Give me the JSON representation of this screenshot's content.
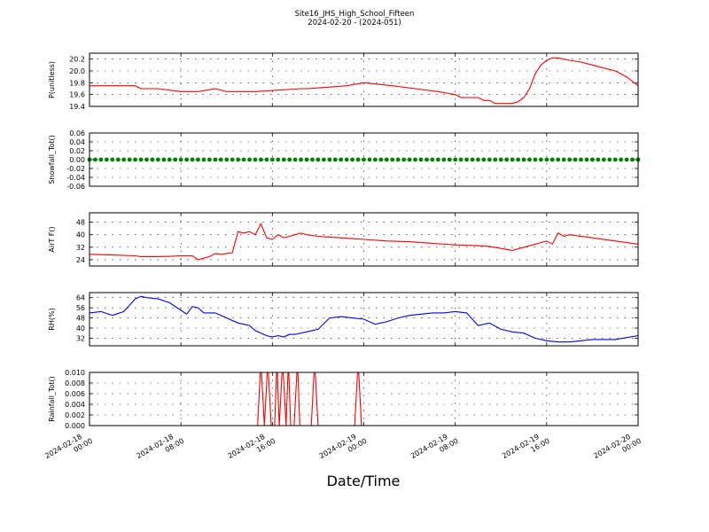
{
  "title": "Site16_JHS_High_School_Fifteen",
  "subtitle": "2024-02-20 - (2024-051)",
  "xlabel": "Date/Time",
  "x_ticks": [
    "2024-02-18\n00:00",
    "2024-02-18\n08:00",
    "2024-02-18\n16:00",
    "2024-02-19\n00:00",
    "2024-02-19\n08:00",
    "2024-02-19\n16:00",
    "2024-02-20\n00:00"
  ],
  "chart_data": [
    {
      "type": "line",
      "ylabel": "P(unitless)",
      "ylim": [
        19.4,
        20.3
      ],
      "yticks": [
        "19.4",
        "19.6",
        "19.8",
        "20.0",
        "20.2"
      ],
      "grid": true,
      "color": "#ff0000",
      "x": [
        0,
        4,
        4.5,
        6,
        8,
        9.5,
        11,
        12,
        14.5,
        18.5,
        19,
        20.5,
        22.5,
        24,
        26.5,
        28.5,
        30.5,
        32,
        32.5,
        34,
        34.5,
        35,
        35.5,
        36,
        36.5,
        37,
        37.5,
        38,
        38.5,
        39,
        39.5,
        40,
        40.5,
        41,
        41.5,
        42,
        43,
        44,
        45,
        46,
        47,
        48
      ],
      "y": [
        19.75,
        19.75,
        19.7,
        19.7,
        19.65,
        19.65,
        19.7,
        19.65,
        19.65,
        19.7,
        19.7,
        19.72,
        19.75,
        19.8,
        19.75,
        19.7,
        19.65,
        19.6,
        19.55,
        19.55,
        19.5,
        19.5,
        19.45,
        19.45,
        19.45,
        19.45,
        19.48,
        19.55,
        19.7,
        19.95,
        20.1,
        20.18,
        20.22,
        20.22,
        20.2,
        20.18,
        20.15,
        20.1,
        20.05,
        20.0,
        19.9,
        19.75
      ]
    },
    {
      "type": "scatter",
      "ylabel": "Snowfall_Tot()",
      "ylim": [
        -0.06,
        0.06
      ],
      "yticks": [
        "-0.06",
        "-0.04",
        "-0.02",
        "0.00",
        "0.02",
        "0.04",
        "0.06"
      ],
      "grid": true,
      "color": "#008000",
      "x_range": [
        0,
        48
      ],
      "constant_y": 0.0
    },
    {
      "type": "line",
      "ylabel": "AirT F()",
      "ylim": [
        20,
        54
      ],
      "yticks": [
        "24",
        "32",
        "40",
        "48"
      ],
      "grid": true,
      "color": "#ff0000",
      "x": [
        0,
        2,
        4,
        4.5,
        6,
        7,
        8,
        9,
        9.5,
        10,
        10.5,
        11,
        11.5,
        12,
        12.5,
        13,
        13.5,
        14,
        14.5,
        15,
        15.5,
        16,
        16.5,
        17,
        17.5,
        18,
        18.5,
        19,
        19.5,
        20,
        21,
        22,
        23,
        24,
        26,
        28,
        30,
        32,
        34,
        35,
        37,
        40,
        40.5,
        41,
        41.5,
        42,
        44,
        46,
        48
      ],
      "y": [
        27.5,
        27.0,
        26.5,
        26.0,
        26.0,
        26.2,
        26.5,
        26.5,
        24.0,
        25.0,
        26.0,
        28.0,
        27.5,
        28.0,
        28.5,
        42.0,
        41.0,
        42.0,
        40.0,
        47.0,
        38.0,
        37.0,
        40.0,
        38.0,
        39.0,
        40.0,
        41.0,
        40.0,
        39.5,
        39.0,
        38.5,
        38.0,
        37.5,
        37.0,
        36.0,
        35.5,
        34.5,
        33.5,
        33.0,
        32.5,
        30.0,
        36.0,
        34.0,
        41.0,
        39.0,
        40.0,
        38.0,
        36.0,
        34.0
      ]
    },
    {
      "type": "line",
      "ylabel": "RH(%)",
      "ylim": [
        26,
        68
      ],
      "yticks": [
        "32",
        "40",
        "48",
        "56",
        "64"
      ],
      "grid": true,
      "color": "#0000ff",
      "x": [
        0,
        1,
        2,
        3,
        3.5,
        4,
        4.5,
        5,
        6,
        7,
        8,
        8.5,
        9,
        9.5,
        10,
        11,
        12,
        13,
        14,
        14.5,
        15,
        15.5,
        16,
        16.5,
        17,
        17.5,
        18,
        19,
        20,
        21,
        22,
        23,
        24,
        25,
        26,
        27,
        28,
        29,
        30,
        31,
        32,
        33,
        34,
        35,
        36,
        37,
        38,
        39,
        40,
        41,
        42,
        44,
        46,
        48
      ],
      "y": [
        52,
        53,
        50,
        53,
        58,
        63,
        65,
        64,
        63,
        60,
        54,
        51,
        57,
        56,
        52,
        52,
        48,
        44,
        42,
        38,
        36,
        34,
        33,
        34,
        33,
        35,
        35,
        37,
        39,
        48,
        49,
        48,
        47,
        43,
        45,
        48,
        50,
        51,
        52,
        52,
        53,
        52,
        42,
        44,
        39,
        37,
        36,
        32,
        30,
        29,
        29,
        31,
        31,
        34
      ]
    },
    {
      "type": "line",
      "ylabel": "Rainfall_Tot()",
      "ylim": [
        0.0,
        0.01
      ],
      "yticks": [
        "0.000",
        "0.002",
        "0.004",
        "0.006",
        "0.008",
        "0.010"
      ],
      "grid": true,
      "color": "#ff0000",
      "x": [
        0,
        14.7,
        15.0,
        15.3,
        15.6,
        15.9,
        16.2,
        16.4,
        16.6,
        16.9,
        17.2,
        17.4,
        17.6,
        17.9,
        18.2,
        18.4,
        18.7,
        19.4,
        19.7,
        20.0,
        23.2,
        23.5,
        23.8,
        48
      ],
      "y": [
        0,
        0,
        0.012,
        0,
        0.012,
        0,
        0,
        0.012,
        0,
        0.012,
        0,
        0.012,
        0,
        0,
        0.012,
        0,
        0,
        0,
        0.012,
        0,
        0,
        0.012,
        0,
        0
      ]
    }
  ]
}
